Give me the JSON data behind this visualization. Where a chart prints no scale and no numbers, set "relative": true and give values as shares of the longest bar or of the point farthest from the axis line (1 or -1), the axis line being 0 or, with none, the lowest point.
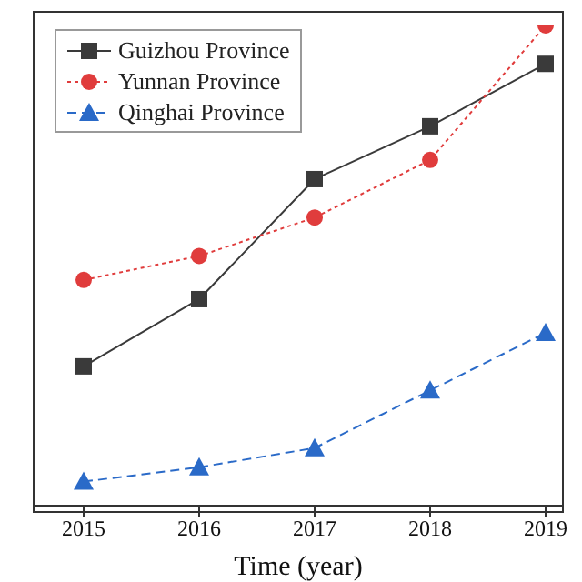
{
  "chart_data": {
    "type": "line",
    "relative": true,
    "xlabel": "Time (year)",
    "categories": [
      "2015",
      "2016",
      "2017",
      "2018",
      "2019"
    ],
    "legend": "top left",
    "series": [
      {
        "name": "Guizhou Province",
        "color": "#3a3a3a",
        "marker": "square",
        "line_style": "solid",
        "values": [
          0.29,
          0.43,
          0.68,
          0.79,
          0.92
        ]
      },
      {
        "name": "Yunnan Province",
        "color": "#e03c3c",
        "marker": "circle",
        "line_style": "dotted",
        "values": [
          0.47,
          0.52,
          0.6,
          0.72,
          1
        ]
      },
      {
        "name": "Qinghai Province",
        "color": "#2a6ac8",
        "marker": "triangle",
        "line_style": "dashed",
        "values": [
          0.05,
          0.08,
          0.12,
          0.24,
          0.36
        ]
      }
    ]
  }
}
